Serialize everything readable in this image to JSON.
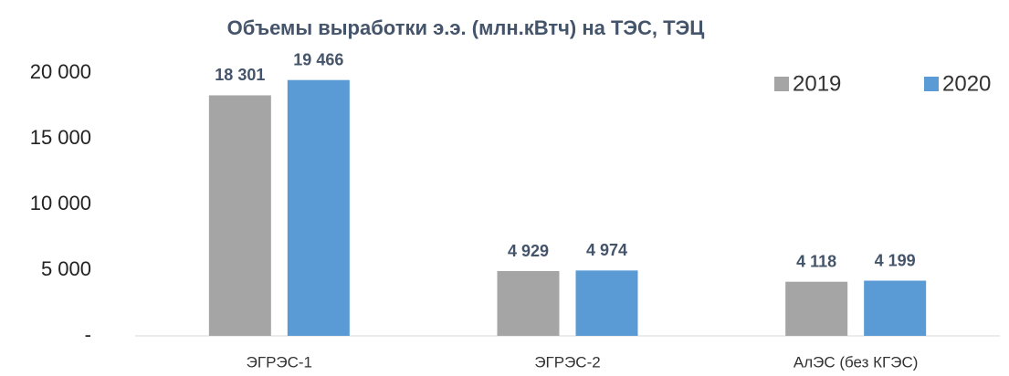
{
  "chart_data": {
    "type": "bar",
    "title": "Объемы выработки э.э. (млн.кВтч) на ТЭС, ТЭЦ",
    "categories": [
      "ЭГРЭС-1",
      "ЭГРЭС-2",
      "АлЭС (без КГЭС)"
    ],
    "series": [
      {
        "name": "2019",
        "color": "#a5a5a5",
        "values": [
          18301,
          4929,
          4118
        ],
        "value_labels": [
          "18 301",
          "4 929",
          "4 118"
        ]
      },
      {
        "name": "2020",
        "color": "#5b9bd5",
        "values": [
          19466,
          4974,
          4199
        ],
        "value_labels": [
          "19 466",
          "4 974",
          "4 199"
        ]
      }
    ],
    "ylim": [
      0,
      20000
    ],
    "yticks": [
      {
        "value": 0,
        "label": "-"
      },
      {
        "value": 5000,
        "label": "5 000"
      },
      {
        "value": 10000,
        "label": "10 000"
      },
      {
        "value": 15000,
        "label": "15 000"
      },
      {
        "value": 20000,
        "label": "20 000"
      }
    ],
    "legend": "top-right"
  }
}
